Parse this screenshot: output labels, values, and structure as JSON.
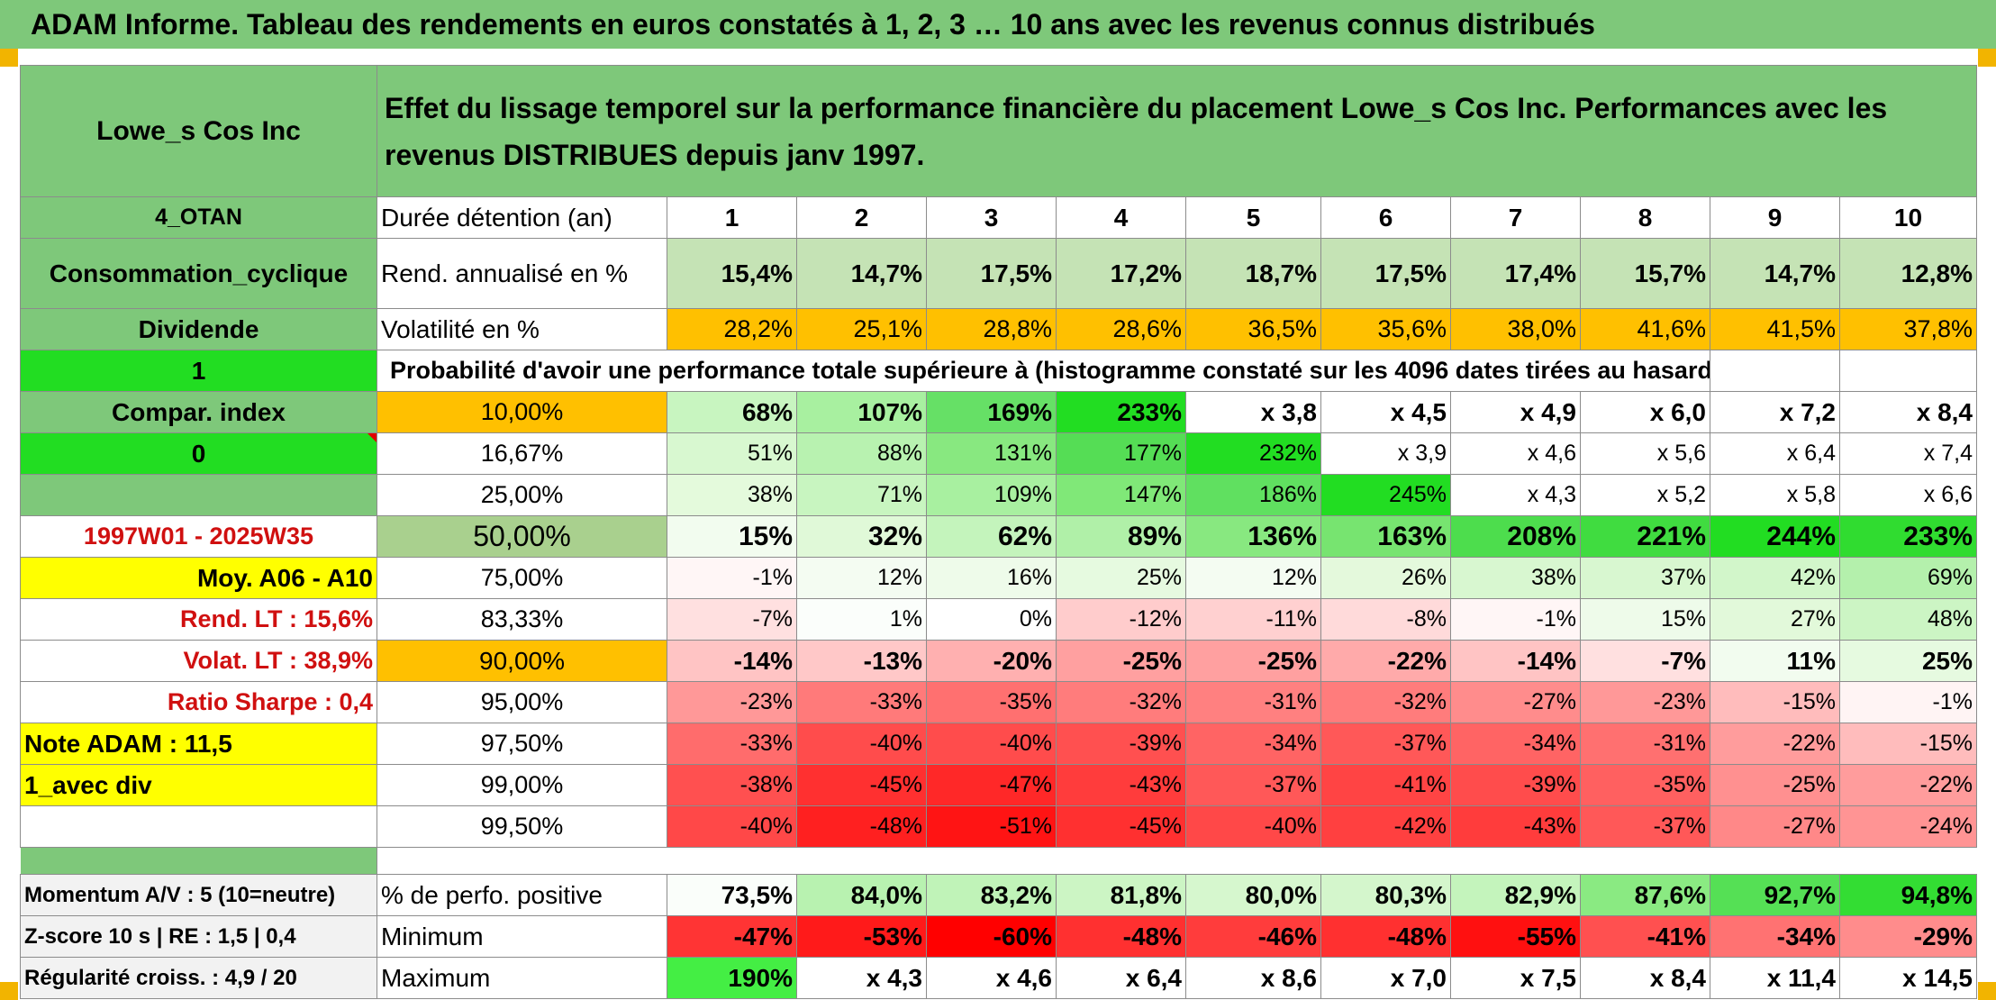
{
  "title": "ADAM Informe. Tableau des rendements en euros constatés à 1, 2, 3 … 10 ans avec les revenus connus distribués",
  "sidebar": {
    "company": "Lowe_s Cos Inc",
    "group": "4_OTAN",
    "sector": "Consommation_cyclique",
    "dividend_label": "Dividende",
    "dividend_value": "1",
    "compar_index_label": "Compar. index",
    "compar_index_value": "0",
    "period": "1997W01 - 2025W35",
    "moy_label": "Moy. A06 - A10",
    "rend_lt": "Rend. LT :   15,6%",
    "volat_lt": "Volat. LT :   38,9%",
    "ratio_sharpe": "Ratio Sharpe :   0,4",
    "note_adam": "Note ADAM : 11,5",
    "avec_div": "1_avec div"
  },
  "header": {
    "effet_text": "Effet du lissage temporel sur la performance financière du placement Lowe_s Cos Inc. Performances avec les revenus DISTRIBUES depuis janv 1997.",
    "duree_label": "Durée détention (an)",
    "years": [
      "1",
      "2",
      "3",
      "4",
      "5",
      "6",
      "7",
      "8",
      "9",
      "10"
    ]
  },
  "rend_row": {
    "label": "Rend. annualisé en %",
    "values": [
      "15,4%",
      "14,7%",
      "17,5%",
      "17,2%",
      "18,7%",
      "17,5%",
      "17,4%",
      "15,7%",
      "14,7%",
      "12,8%"
    ]
  },
  "vol_row": {
    "label": "Volatilité en %",
    "values": [
      "28,2%",
      "25,1%",
      "28,8%",
      "28,6%",
      "36,5%",
      "35,6%",
      "38,0%",
      "41,6%",
      "41,5%",
      "37,8%"
    ]
  },
  "prob_label": "Probabilité d'avoir une performance totale supérieure à (histogramme constaté sur les 4096 dates tirées au hasard)",
  "prob_rows": [
    {
      "pct": "10,00%",
      "values": [
        "68%",
        "107%",
        "169%",
        "233%",
        "x 3,8",
        "x 4,5",
        "x 4,9",
        "x 6,0",
        "x 7,2",
        "x 8,4"
      ],
      "colors": [
        "#c8f5c0",
        "#a8f0a0",
        "#66e066",
        "#22dd22",
        "#ffffff",
        "#ffffff",
        "#ffffff",
        "#ffffff",
        "#ffffff",
        "#ffffff"
      ]
    },
    {
      "pct": "16,67%",
      "values": [
        "51%",
        "88%",
        "131%",
        "177%",
        "232%",
        "x 3,9",
        "x 4,6",
        "x 5,6",
        "x 6,4",
        "x 7,4"
      ],
      "colors": [
        "#d8f8d0",
        "#b8f2b0",
        "#88e880",
        "#55dd55",
        "#22dd22",
        "#ffffff",
        "#ffffff",
        "#ffffff",
        "#ffffff",
        "#ffffff"
      ]
    },
    {
      "pct": "25,00%",
      "values": [
        "38%",
        "71%",
        "109%",
        "147%",
        "186%",
        "245%",
        "x 4,3",
        "x 5,2",
        "x 5,8",
        "x 6,6"
      ],
      "colors": [
        "#e4fadc",
        "#c8f5c0",
        "#a8f0a0",
        "#80e878",
        "#60e060",
        "#22dd22",
        "#ffffff",
        "#ffffff",
        "#ffffff",
        "#ffffff"
      ]
    },
    {
      "pct": "50,00%",
      "values": [
        "15%",
        "32%",
        "62%",
        "89%",
        "136%",
        "163%",
        "208%",
        "221%",
        "244%",
        "233%"
      ],
      "colors": [
        "#f2fcef",
        "#e0f9d8",
        "#c4f4bc",
        "#b0f0a8",
        "#88e880",
        "#77e470",
        "#4ddd4d",
        "#40dc40",
        "#22dd22",
        "#30dc30"
      ]
    },
    {
      "pct": "75,00%",
      "values": [
        "-1%",
        "12%",
        "16%",
        "25%",
        "12%",
        "26%",
        "38%",
        "37%",
        "42%",
        "69%"
      ],
      "colors": [
        "#fff6f6",
        "#f4fcf2",
        "#eefbea",
        "#e6fae0",
        "#f4fcf2",
        "#e4f9dc",
        "#d8f7d0",
        "#d8f7d0",
        "#d2f6ca",
        "#b4f0ac"
      ]
    },
    {
      "pct": "83,33%",
      "values": [
        "-7%",
        "1%",
        "0%",
        "-12%",
        "-11%",
        "-8%",
        "-1%",
        "15%",
        "27%",
        "48%"
      ],
      "colors": [
        "#ffe0e0",
        "#fbfefb",
        "#ffffff",
        "#ffcccc",
        "#ffd0d0",
        "#ffdada",
        "#fff6f6",
        "#eefbea",
        "#e2f9da",
        "#ccf5c4"
      ]
    },
    {
      "pct": "90,00%",
      "values": [
        "-14%",
        "-13%",
        "-20%",
        "-25%",
        "-25%",
        "-22%",
        "-14%",
        "-7%",
        "11%",
        "25%"
      ],
      "colors": [
        "#ffc4c4",
        "#ffc8c8",
        "#ffb0b0",
        "#ffa0a0",
        "#ffa0a0",
        "#ffaaaa",
        "#ffc4c4",
        "#ffe0e0",
        "#f2fcef",
        "#e6fae0"
      ]
    },
    {
      "pct": "95,00%",
      "values": [
        "-23%",
        "-33%",
        "-35%",
        "-32%",
        "-31%",
        "-32%",
        "-27%",
        "-23%",
        "-15%",
        "-1%"
      ],
      "colors": [
        "#ff9898",
        "#ff7a7a",
        "#ff7070",
        "#ff7c7c",
        "#ff8080",
        "#ff7c7c",
        "#ff8c8c",
        "#ff9898",
        "#ffbcbc",
        "#fff4f4"
      ]
    },
    {
      "pct": "97,50%",
      "values": [
        "-33%",
        "-40%",
        "-40%",
        "-39%",
        "-34%",
        "-37%",
        "-34%",
        "-31%",
        "-22%",
        "-15%"
      ],
      "colors": [
        "#ff6c6c",
        "#ff4c4c",
        "#ff4c4c",
        "#ff5050",
        "#ff6464",
        "#ff5858",
        "#ff6464",
        "#ff7070",
        "#ff9c9c",
        "#ffbcbc"
      ]
    },
    {
      "pct": "99,00%",
      "values": [
        "-38%",
        "-45%",
        "-47%",
        "-43%",
        "-37%",
        "-41%",
        "-39%",
        "-35%",
        "-25%",
        "-22%"
      ],
      "colors": [
        "#ff5050",
        "#ff3030",
        "#ff2828",
        "#ff3c3c",
        "#ff5858",
        "#ff4444",
        "#ff4c4c",
        "#ff6060",
        "#ff9090",
        "#ff9c9c"
      ]
    },
    {
      "pct": "99,50%",
      "values": [
        "-40%",
        "-48%",
        "-51%",
        "-45%",
        "-40%",
        "-42%",
        "-43%",
        "-37%",
        "-27%",
        "-24%"
      ],
      "colors": [
        "#ff4848",
        "#ff2020",
        "#ff1414",
        "#ff3030",
        "#ff4848",
        "#ff4040",
        "#ff3c3c",
        "#ff5858",
        "#ff8888",
        "#ff9494"
      ]
    }
  ],
  "bottom": {
    "momentum": "Momentum A/V : 5 (10=neutre)",
    "zscore": "Z-score 10 s | RE : 1,5 | 0,4",
    "regularite": "Régularité croiss. : 4,9 / 20",
    "pos": {
      "label": "% de perfo. positive",
      "values": [
        "73,5%",
        "84,0%",
        "83,2%",
        "81,8%",
        "80,0%",
        "80,3%",
        "82,9%",
        "87,6%",
        "92,7%",
        "94,8%"
      ],
      "colors": [
        "#fafefa",
        "#b8f2b0",
        "#c0f3b8",
        "#ccf5c4",
        "#d6f7ce",
        "#d4f6cc",
        "#c4f4bc",
        "#8aea82",
        "#55e055",
        "#33dd33"
      ]
    },
    "min": {
      "label": "Minimum",
      "values": [
        "-47%",
        "-53%",
        "-60%",
        "-48%",
        "-46%",
        "-48%",
        "-55%",
        "-41%",
        "-34%",
        "-29%"
      ],
      "colors": [
        "#ff3434",
        "#ff1a1a",
        "#ff0000",
        "#ff3030",
        "#ff3c3c",
        "#ff3030",
        "#ff1010",
        "#ff5050",
        "#ff7272",
        "#ff8c8c"
      ]
    },
    "max": {
      "label": "Maximum",
      "values": [
        "190%",
        "x 4,3",
        "x 4,6",
        "x 6,4",
        "x 8,6",
        "x 7,0",
        "x 7,5",
        "x 8,4",
        "x 11,4",
        "x 14,5"
      ],
      "colors": [
        "#44ee44",
        "#ffffff",
        "#ffffff",
        "#ffffff",
        "#ffffff",
        "#ffffff",
        "#ffffff",
        "#ffffff",
        "#ffffff",
        "#ffffff"
      ]
    }
  }
}
